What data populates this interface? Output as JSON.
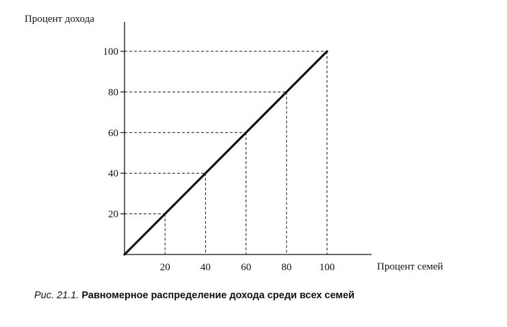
{
  "chart_data": {
    "type": "line",
    "title": "",
    "xlabel": "Процент семей",
    "ylabel": "Процент дохода",
    "xlim": [
      0,
      110
    ],
    "ylim": [
      0,
      110
    ],
    "x_ticks": [
      20,
      40,
      60,
      80,
      100
    ],
    "y_ticks": [
      20,
      40,
      60,
      80,
      100
    ],
    "grid": false,
    "dashed_guides": true,
    "series": [
      {
        "x": [
          0,
          100
        ],
        "values": [
          0,
          100
        ]
      }
    ],
    "guide_points": [
      {
        "x": 20,
        "y": 20
      },
      {
        "x": 40,
        "y": 40
      },
      {
        "x": 60,
        "y": 60
      },
      {
        "x": 80,
        "y": 80
      },
      {
        "x": 100,
        "y": 100
      }
    ]
  },
  "caption": {
    "prefix": "Рис. 21.1.",
    "text": "Равномерное распределение дохода среди всех семей"
  }
}
